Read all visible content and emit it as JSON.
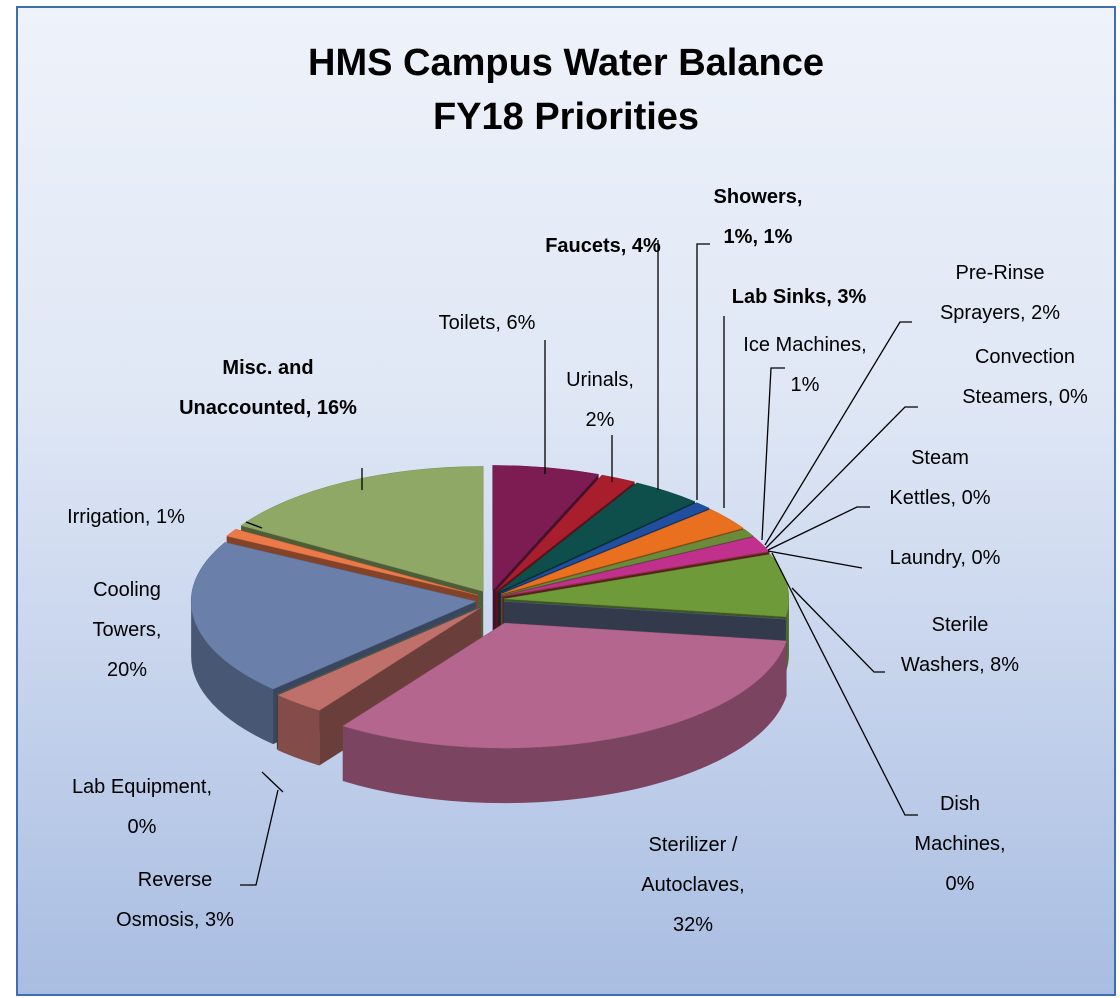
{
  "chart_data": {
    "type": "pie3d",
    "title": "HMS Campus Water Balance",
    "subtitle": "FY18 Priorities",
    "categories": [
      "Toilets",
      "Urinals",
      "Faucets",
      "Showers",
      "Lab Sinks",
      "Ice Machines",
      "Pre-Rinse Sprayers",
      "Convection Steamers",
      "Steam Kettles",
      "Laundry",
      "Sterile Washers",
      "Dish Machines",
      "Sterilizer / Autoclaves",
      "Reverse Osmosis",
      "Lab Equipment",
      "Cooling Towers",
      "Irrigation",
      "Misc. and Unaccounted"
    ],
    "values": [
      6,
      2,
      4,
      1,
      3,
      1,
      2,
      0,
      0,
      0,
      8,
      0,
      32,
      3,
      0,
      20,
      1,
      16
    ],
    "value_labels": [
      "Toilets, 6%",
      "Urinals, 2%",
      "Faucets, 4%",
      "Showers, 1%, 1%",
      "Lab Sinks, 3%",
      "Ice Machines, 1%",
      "Pre-Rinse Sprayers, 2%",
      "Convection Steamers, 0%",
      "Steam Kettles, 0%",
      "Laundry, 0%",
      "Sterile Washers, 8%",
      "Dish Machines, 0%",
      "Sterilizer / Autoclaves, 32%",
      "Reverse Osmosis, 3%",
      "Lab Equipment, 0%",
      "Cooling Towers, 20%",
      "Irrigation, 1%",
      "Misc. and Unaccounted, 16%"
    ],
    "colors": [
      "#7d1c52",
      "#a81e2c",
      "#0e4f4c",
      "#1f4f9e",
      "#e8701f",
      "#6b8a3a",
      "#c2308e",
      "#4a7a9a",
      "#8a5a2a",
      "#9a3a2a",
      "#6e9a3a",
      "#5a6a8a",
      "#b5668f",
      "#c0706a",
      "#5a7a5a",
      "#6a80aa",
      "#ec7a48",
      "#8fa866"
    ]
  }
}
